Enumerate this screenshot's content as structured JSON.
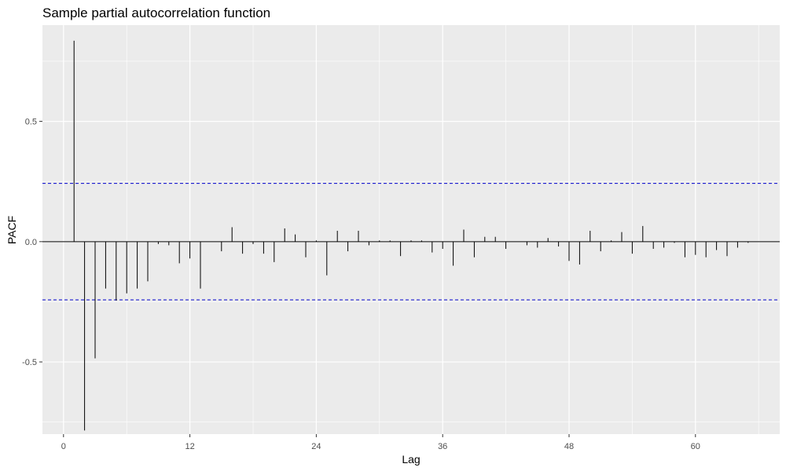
{
  "chart_data": {
    "type": "bar",
    "title": "Sample partial autocorrelation function",
    "xlabel": "Lag",
    "ylabel": "PACF",
    "xlim": [
      -2,
      68
    ],
    "ylim": [
      -0.8,
      0.9
    ],
    "x_ticks": [
      0,
      12,
      24,
      36,
      48,
      60
    ],
    "y_ticks": [
      -0.5,
      0.0,
      0.5
    ],
    "y_tick_labels": [
      "-0.5",
      "0.0",
      "0.5"
    ],
    "x_minor_ticks": [
      6,
      18,
      30,
      42,
      54,
      66
    ],
    "y_minor_ticks": [
      -0.75,
      -0.25,
      0.25,
      0.75
    ],
    "confidence_bound": 0.242,
    "grid": true,
    "colors": {
      "panel": "#ebebeb",
      "grid": "#ffffff",
      "bars": "#000000",
      "bounds": "#0000cd",
      "zero_line": "#000000"
    },
    "series": [
      {
        "lags": [
          1,
          2,
          3,
          4,
          5,
          6,
          7,
          8,
          9,
          10,
          11,
          12,
          13,
          14,
          15,
          16,
          17,
          18,
          19,
          20,
          21,
          22,
          23,
          24,
          25,
          26,
          27,
          28,
          29,
          30,
          31,
          32,
          33,
          34,
          35,
          36,
          37,
          38,
          39,
          40,
          41,
          42,
          43,
          44,
          45,
          46,
          47,
          48,
          49,
          50,
          51,
          52,
          53,
          54,
          55,
          56,
          57,
          58,
          59,
          60,
          61,
          62,
          63,
          64,
          65
        ],
        "values": [
          0.835,
          -0.785,
          -0.485,
          -0.195,
          -0.245,
          -0.215,
          -0.195,
          -0.165,
          -0.01,
          -0.015,
          -0.09,
          -0.07,
          -0.195,
          0.0,
          -0.04,
          0.06,
          -0.05,
          -0.01,
          -0.05,
          -0.085,
          0.055,
          0.03,
          -0.065,
          0.005,
          -0.14,
          0.045,
          -0.04,
          0.045,
          -0.015,
          0.005,
          0.005,
          -0.06,
          0.005,
          0.005,
          -0.045,
          -0.03,
          -0.1,
          0.05,
          -0.065,
          0.02,
          0.02,
          -0.03,
          0.0,
          -0.015,
          -0.025,
          0.015,
          -0.02,
          -0.08,
          -0.095,
          0.045,
          -0.04,
          0.005,
          0.04,
          -0.05,
          0.065,
          -0.03,
          -0.025,
          -0.005,
          -0.065,
          -0.055,
          -0.065,
          -0.035,
          -0.06,
          -0.025,
          -0.005
        ]
      }
    ]
  }
}
